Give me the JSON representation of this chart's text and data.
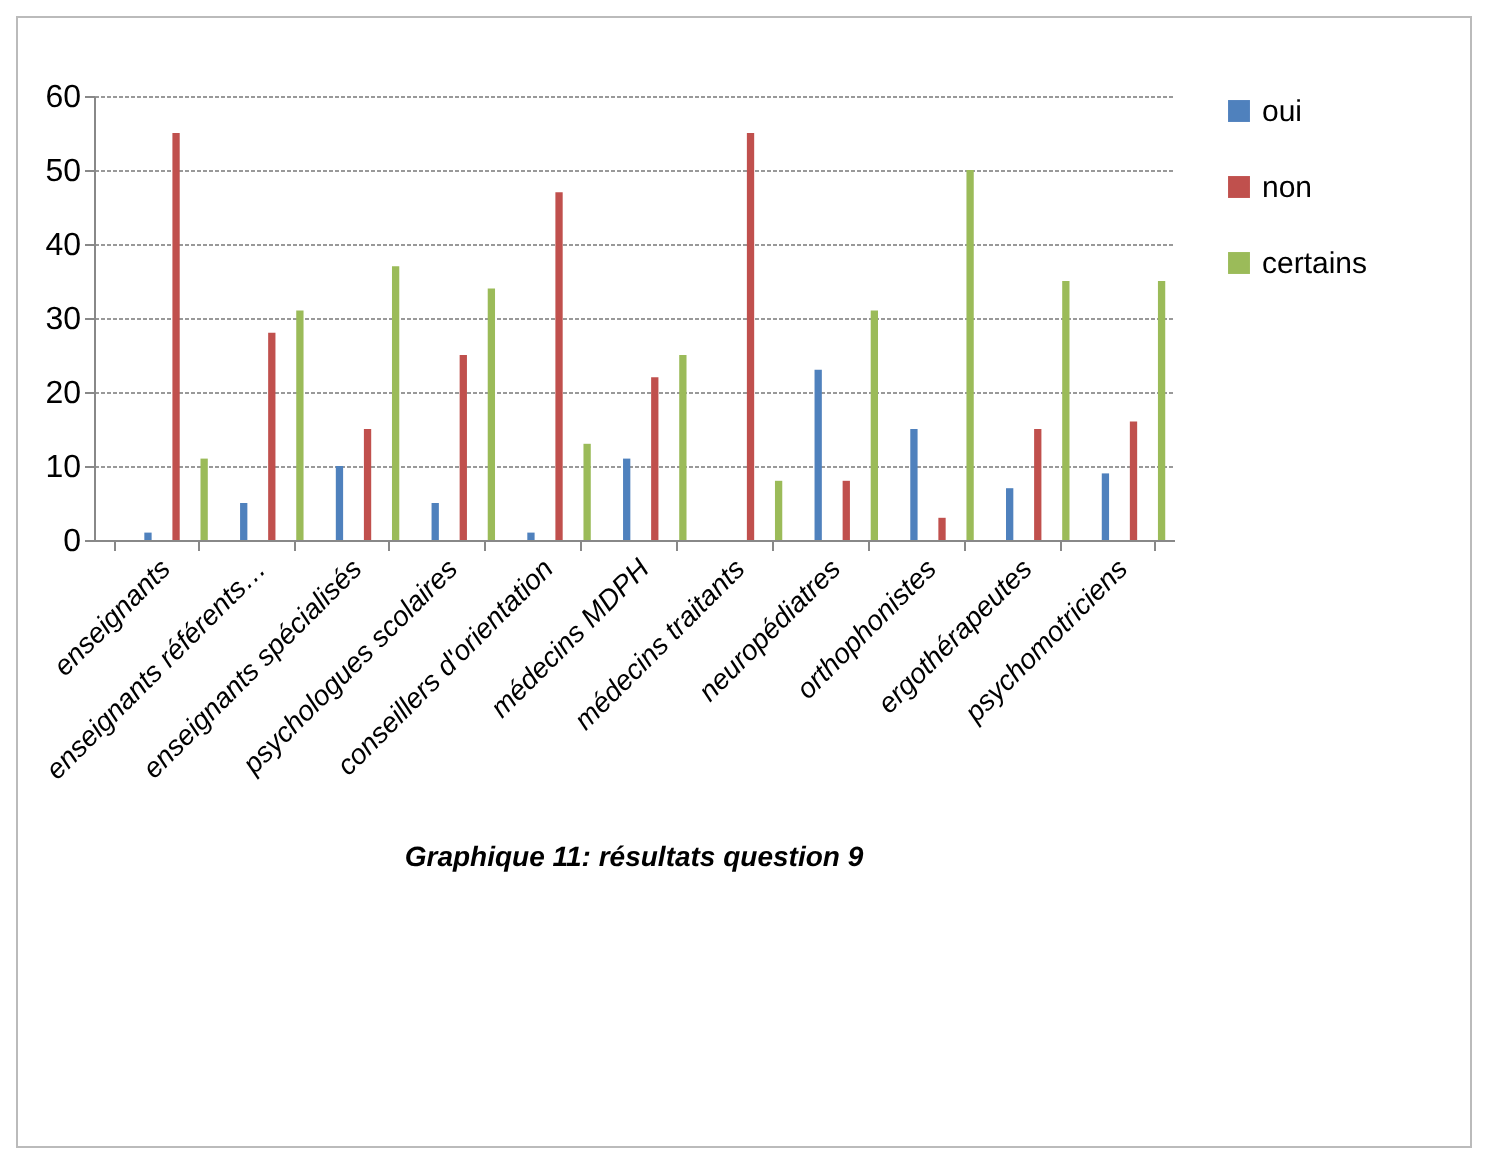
{
  "chart_data": {
    "type": "bar",
    "title": "Graphique 11: résultats question 9",
    "categories": [
      "enseignants",
      "enseignants référents…",
      "enseignants spécialisés",
      "psychologues scolaires",
      "conseillers d'orientation",
      "médecins MDPH",
      "médecins traitants",
      "neuropédiatres",
      "orthophonistes",
      "ergothérapeutes",
      "psychomotriciens"
    ],
    "series": [
      {
        "name": "oui",
        "color": "#4f81bd",
        "values": [
          1,
          5,
          10,
          5,
          1,
          11,
          0,
          23,
          15,
          7,
          9
        ]
      },
      {
        "name": "non",
        "color": "#c0504d",
        "values": [
          55,
          28,
          15,
          25,
          47,
          22,
          55,
          8,
          3,
          15,
          16
        ]
      },
      {
        "name": "certains",
        "color": "#9bbb59",
        "values": [
          11,
          31,
          37,
          34,
          13,
          25,
          8,
          31,
          50,
          35,
          35
        ]
      }
    ],
    "ylim": [
      0,
      60
    ],
    "yticks": [
      0,
      10,
      20,
      30,
      40,
      50,
      60
    ],
    "grid": "y",
    "legend": "right"
  }
}
